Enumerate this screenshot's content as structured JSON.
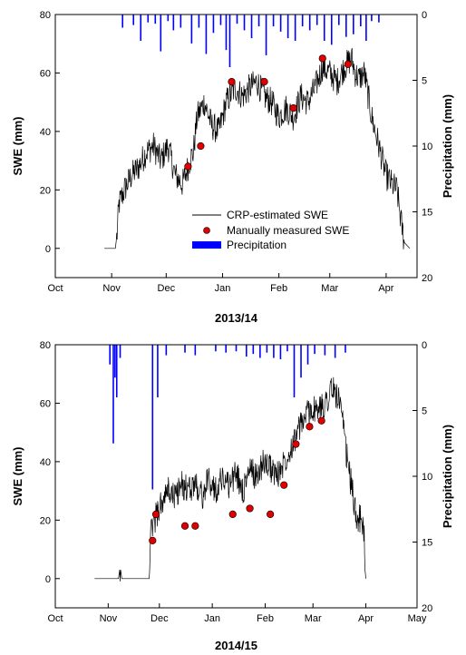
{
  "chart_data": [
    {
      "type": "line",
      "title": "2013/14",
      "xlabel": "",
      "ylabel": "SWE (mm)",
      "y2label": "Precipitation (mm)",
      "xticks": [
        "Oct",
        "Nov",
        "Dec",
        "Jan",
        "Feb",
        "Mar",
        "Apr"
      ],
      "x_start": "2013-10-01",
      "x_end": "2014-04-18",
      "ylim": [
        -10,
        80
      ],
      "yticks": [
        0,
        20,
        40,
        60,
        80
      ],
      "y2lim": [
        0,
        20
      ],
      "y2ticks": [
        0,
        5,
        10,
        15,
        20
      ],
      "y2_inverted": true,
      "legend": {
        "placement": "center",
        "entries": [
          "CRP-estimated SWE",
          "Manually measured SWE",
          "Precipitation"
        ]
      },
      "series": [
        {
          "name": "CRP-estimated SWE",
          "kind": "line",
          "color": "#000000",
          "x": [
            "2013-10-28",
            "2013-11-03",
            "2013-11-04",
            "2013-11-05",
            "2013-11-08",
            "2013-11-12",
            "2013-11-16",
            "2013-11-20",
            "2013-11-24",
            "2013-11-28",
            "2013-12-02",
            "2013-12-06",
            "2013-12-10",
            "2013-12-14",
            "2013-12-16",
            "2013-12-18",
            "2013-12-22",
            "2013-12-26",
            "2013-12-30",
            "2014-01-03",
            "2014-01-08",
            "2014-01-12",
            "2014-01-16",
            "2014-01-20",
            "2014-01-24",
            "2014-01-28",
            "2014-02-01",
            "2014-02-05",
            "2014-02-09",
            "2014-02-13",
            "2014-02-17",
            "2014-02-21",
            "2014-02-25",
            "2014-03-01",
            "2014-03-05",
            "2014-03-09",
            "2014-03-13",
            "2014-03-15",
            "2014-03-17",
            "2014-03-20",
            "2014-03-24",
            "2014-03-28",
            "2014-04-01",
            "2014-04-04",
            "2014-04-07",
            "2014-04-09",
            "2014-04-11",
            "2014-04-14"
          ],
          "values": [
            0,
            0,
            5,
            15,
            20,
            25,
            28,
            33,
            35,
            30,
            35,
            25,
            22,
            30,
            33,
            45,
            50,
            42,
            40,
            50,
            55,
            52,
            55,
            57,
            52,
            50,
            45,
            48,
            45,
            52,
            50,
            55,
            62,
            60,
            57,
            62,
            65,
            60,
            58,
            60,
            45,
            35,
            25,
            22,
            20,
            10,
            2,
            0
          ]
        },
        {
          "name": "Manually measured SWE",
          "kind": "scatter",
          "color": "#e00000",
          "x": [
            "2013-12-13",
            "2013-12-20",
            "2014-01-06",
            "2014-01-24",
            "2014-02-09",
            "2014-02-25",
            "2014-03-11"
          ],
          "values": [
            28,
            35,
            57,
            57,
            48,
            65,
            63
          ]
        },
        {
          "name": "Precipitation",
          "kind": "bar",
          "axis": "y2",
          "color": "#0000ff",
          "x": [
            "2013-11-07",
            "2013-11-13",
            "2013-11-17",
            "2013-11-21",
            "2013-11-25",
            "2013-11-28",
            "2013-12-02",
            "2013-12-05",
            "2013-12-09",
            "2013-12-15",
            "2013-12-19",
            "2013-12-23",
            "2013-12-27",
            "2013-12-31",
            "2014-01-03",
            "2014-01-05",
            "2014-01-09",
            "2014-01-13",
            "2014-01-17",
            "2014-01-21",
            "2014-01-25",
            "2014-01-29",
            "2014-02-02",
            "2014-02-06",
            "2014-02-10",
            "2014-02-14",
            "2014-02-18",
            "2014-02-22",
            "2014-02-26",
            "2014-03-02",
            "2014-03-06",
            "2014-03-10",
            "2014-03-14",
            "2014-03-18",
            "2014-03-21",
            "2014-03-24",
            "2014-03-28"
          ],
          "values": [
            1.0,
            0.8,
            2.0,
            0.6,
            0.7,
            2.8,
            0.5,
            1.2,
            1.0,
            2.2,
            1.0,
            3.0,
            1.4,
            0.8,
            2.7,
            4.0,
            0.7,
            1.2,
            1.8,
            0.9,
            3.1,
            0.9,
            1.3,
            1.8,
            2.0,
            0.9,
            1.2,
            0.8,
            2.0,
            2.3,
            0.8,
            1.7,
            1.5,
            0.9,
            2.0,
            0.5,
            0.6
          ]
        }
      ]
    },
    {
      "type": "line",
      "title": "2014/15",
      "xlabel": "",
      "ylabel": "SWE (mm)",
      "y2label": "Precipitation (mm)",
      "xticks": [
        "Oct",
        "Nov",
        "Dec",
        "Jan",
        "Feb",
        "Mar",
        "Apr",
        "May"
      ],
      "x_start": "2014-10-01",
      "x_end": "2015-05-01",
      "ylim": [
        -10,
        80
      ],
      "yticks": [
        0,
        20,
        40,
        60,
        80
      ],
      "y2lim": [
        0,
        20
      ],
      "y2ticks": [
        0,
        5,
        10,
        15,
        20
      ],
      "y2_inverted": true,
      "series": [
        {
          "name": "CRP-estimated SWE",
          "kind": "line",
          "color": "#000000",
          "x": [
            "2014-10-24",
            "2014-11-07",
            "2014-11-08",
            "2014-11-09",
            "2014-11-10",
            "2014-11-25",
            "2014-11-26",
            "2014-11-28",
            "2014-12-02",
            "2014-12-06",
            "2014-12-10",
            "2014-12-14",
            "2014-12-18",
            "2014-12-22",
            "2014-12-26",
            "2014-12-30",
            "2015-01-03",
            "2015-01-07",
            "2015-01-11",
            "2015-01-15",
            "2015-01-19",
            "2015-01-23",
            "2015-01-27",
            "2015-01-31",
            "2015-02-04",
            "2015-02-08",
            "2015-02-12",
            "2015-02-16",
            "2015-02-20",
            "2015-02-24",
            "2015-02-28",
            "2015-03-04",
            "2015-03-08",
            "2015-03-12",
            "2015-03-16",
            "2015-03-18",
            "2015-03-20",
            "2015-03-24",
            "2015-03-26",
            "2015-03-29",
            "2015-03-31",
            "2015-04-01"
          ],
          "values": [
            0,
            0,
            4,
            0,
            0,
            0,
            15,
            20,
            25,
            30,
            28,
            32,
            30,
            33,
            28,
            34,
            30,
            35,
            32,
            36,
            30,
            37,
            35,
            40,
            38,
            35,
            40,
            45,
            50,
            55,
            58,
            57,
            60,
            65,
            62,
            55,
            45,
            30,
            22,
            20,
            15,
            0
          ]
        },
        {
          "name": "Manually measured SWE",
          "kind": "scatter",
          "color": "#e00000",
          "x": [
            "2014-11-27",
            "2014-11-29",
            "2014-12-16",
            "2014-12-22",
            "2015-01-13",
            "2015-01-23",
            "2015-02-04",
            "2015-02-12",
            "2015-02-19",
            "2015-02-27",
            "2015-03-06"
          ],
          "values": [
            13,
            22,
            18,
            18,
            22,
            24,
            22,
            32,
            46,
            52,
            54
          ]
        },
        {
          "name": "Precipitation",
          "kind": "bar",
          "axis": "y2",
          "color": "#0000ff",
          "x": [
            "2014-11-02",
            "2014-11-04",
            "2014-11-05",
            "2014-11-06",
            "2014-11-08",
            "2014-11-27",
            "2014-11-30",
            "2014-12-05",
            "2014-12-16",
            "2014-12-22",
            "2015-01-03",
            "2015-01-09",
            "2015-01-15",
            "2015-01-21",
            "2015-01-25",
            "2015-01-29",
            "2015-02-02",
            "2015-02-06",
            "2015-02-10",
            "2015-02-14",
            "2015-02-18",
            "2015-02-22",
            "2015-02-26",
            "2015-03-02",
            "2015-03-08",
            "2015-03-14",
            "2015-03-20"
          ],
          "values": [
            1.5,
            7.5,
            2.5,
            4.0,
            1.0,
            11.0,
            4.0,
            0.8,
            0.6,
            0.8,
            0.5,
            0.6,
            0.5,
            0.9,
            0.7,
            1.0,
            0.6,
            1.0,
            1.1,
            0.5,
            4.0,
            2.5,
            1.5,
            0.7,
            0.8,
            1.0,
            0.6
          ]
        }
      ]
    }
  ]
}
